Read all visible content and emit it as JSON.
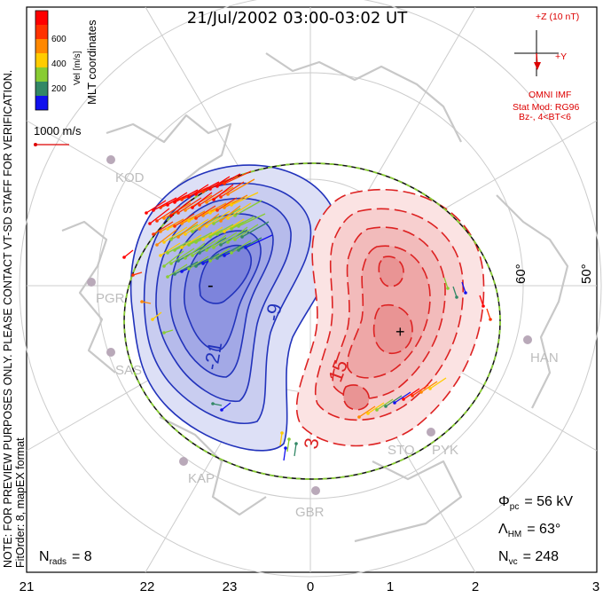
{
  "title": "21/Jul/2002 03:00-03:02 UT",
  "side_note_1": "NOTE: FOR PREVIEW PURPOSES ONLY. PLEASE CONTACT VT-SD STAFF FOR VERIFICATION.",
  "side_note_2": "FitOrder: 8, mapEX format",
  "coords_label": "MLT coordinates",
  "velocity_legend": {
    "unit_label": "Vel [m/s]",
    "ticks": [
      "600",
      "400",
      "200"
    ],
    "colors": [
      "#ff0000",
      "#ff6600",
      "#ffaa00",
      "#99dd33",
      "#33bb66",
      "#3377cc",
      "#1111ee"
    ]
  },
  "reference_vector_label": "1000 m/s",
  "imf": {
    "z_label": "+Z (10 nT)",
    "y_label": "+Y",
    "source": "OMNI IMF",
    "model": "Stat Mod: RG96",
    "condition": "Bz-, 4<BT<6",
    "color": "#dd0000"
  },
  "latitude_labels": [
    "60°",
    "50°"
  ],
  "contour_labels": [
    "-9",
    "-21",
    "15",
    "3"
  ],
  "stations": [
    "KOD",
    "PGR",
    "SAS",
    "KAP",
    "GBR",
    "STO",
    "PYK",
    "HAN"
  ],
  "stats": {
    "phi_pc": "Φ",
    "phi_sub": "pc",
    "phi_val": "= 56 kV",
    "lambda": "Λ",
    "lambda_sub": "HM",
    "lambda_val": "= 63°",
    "nvc": "N",
    "nvc_sub": "vc",
    "nvc_val": "= 248",
    "nrads": "N",
    "nrads_sub": "rads",
    "nrads_val": "= 8"
  },
  "mlt_axis": [
    "21",
    "22",
    "23",
    "0",
    "1",
    "2",
    "3"
  ],
  "colors": {
    "negative_cell": "#2233bb",
    "positive_cell": "#dd2222",
    "boundary_dash": "#88cc33"
  }
}
